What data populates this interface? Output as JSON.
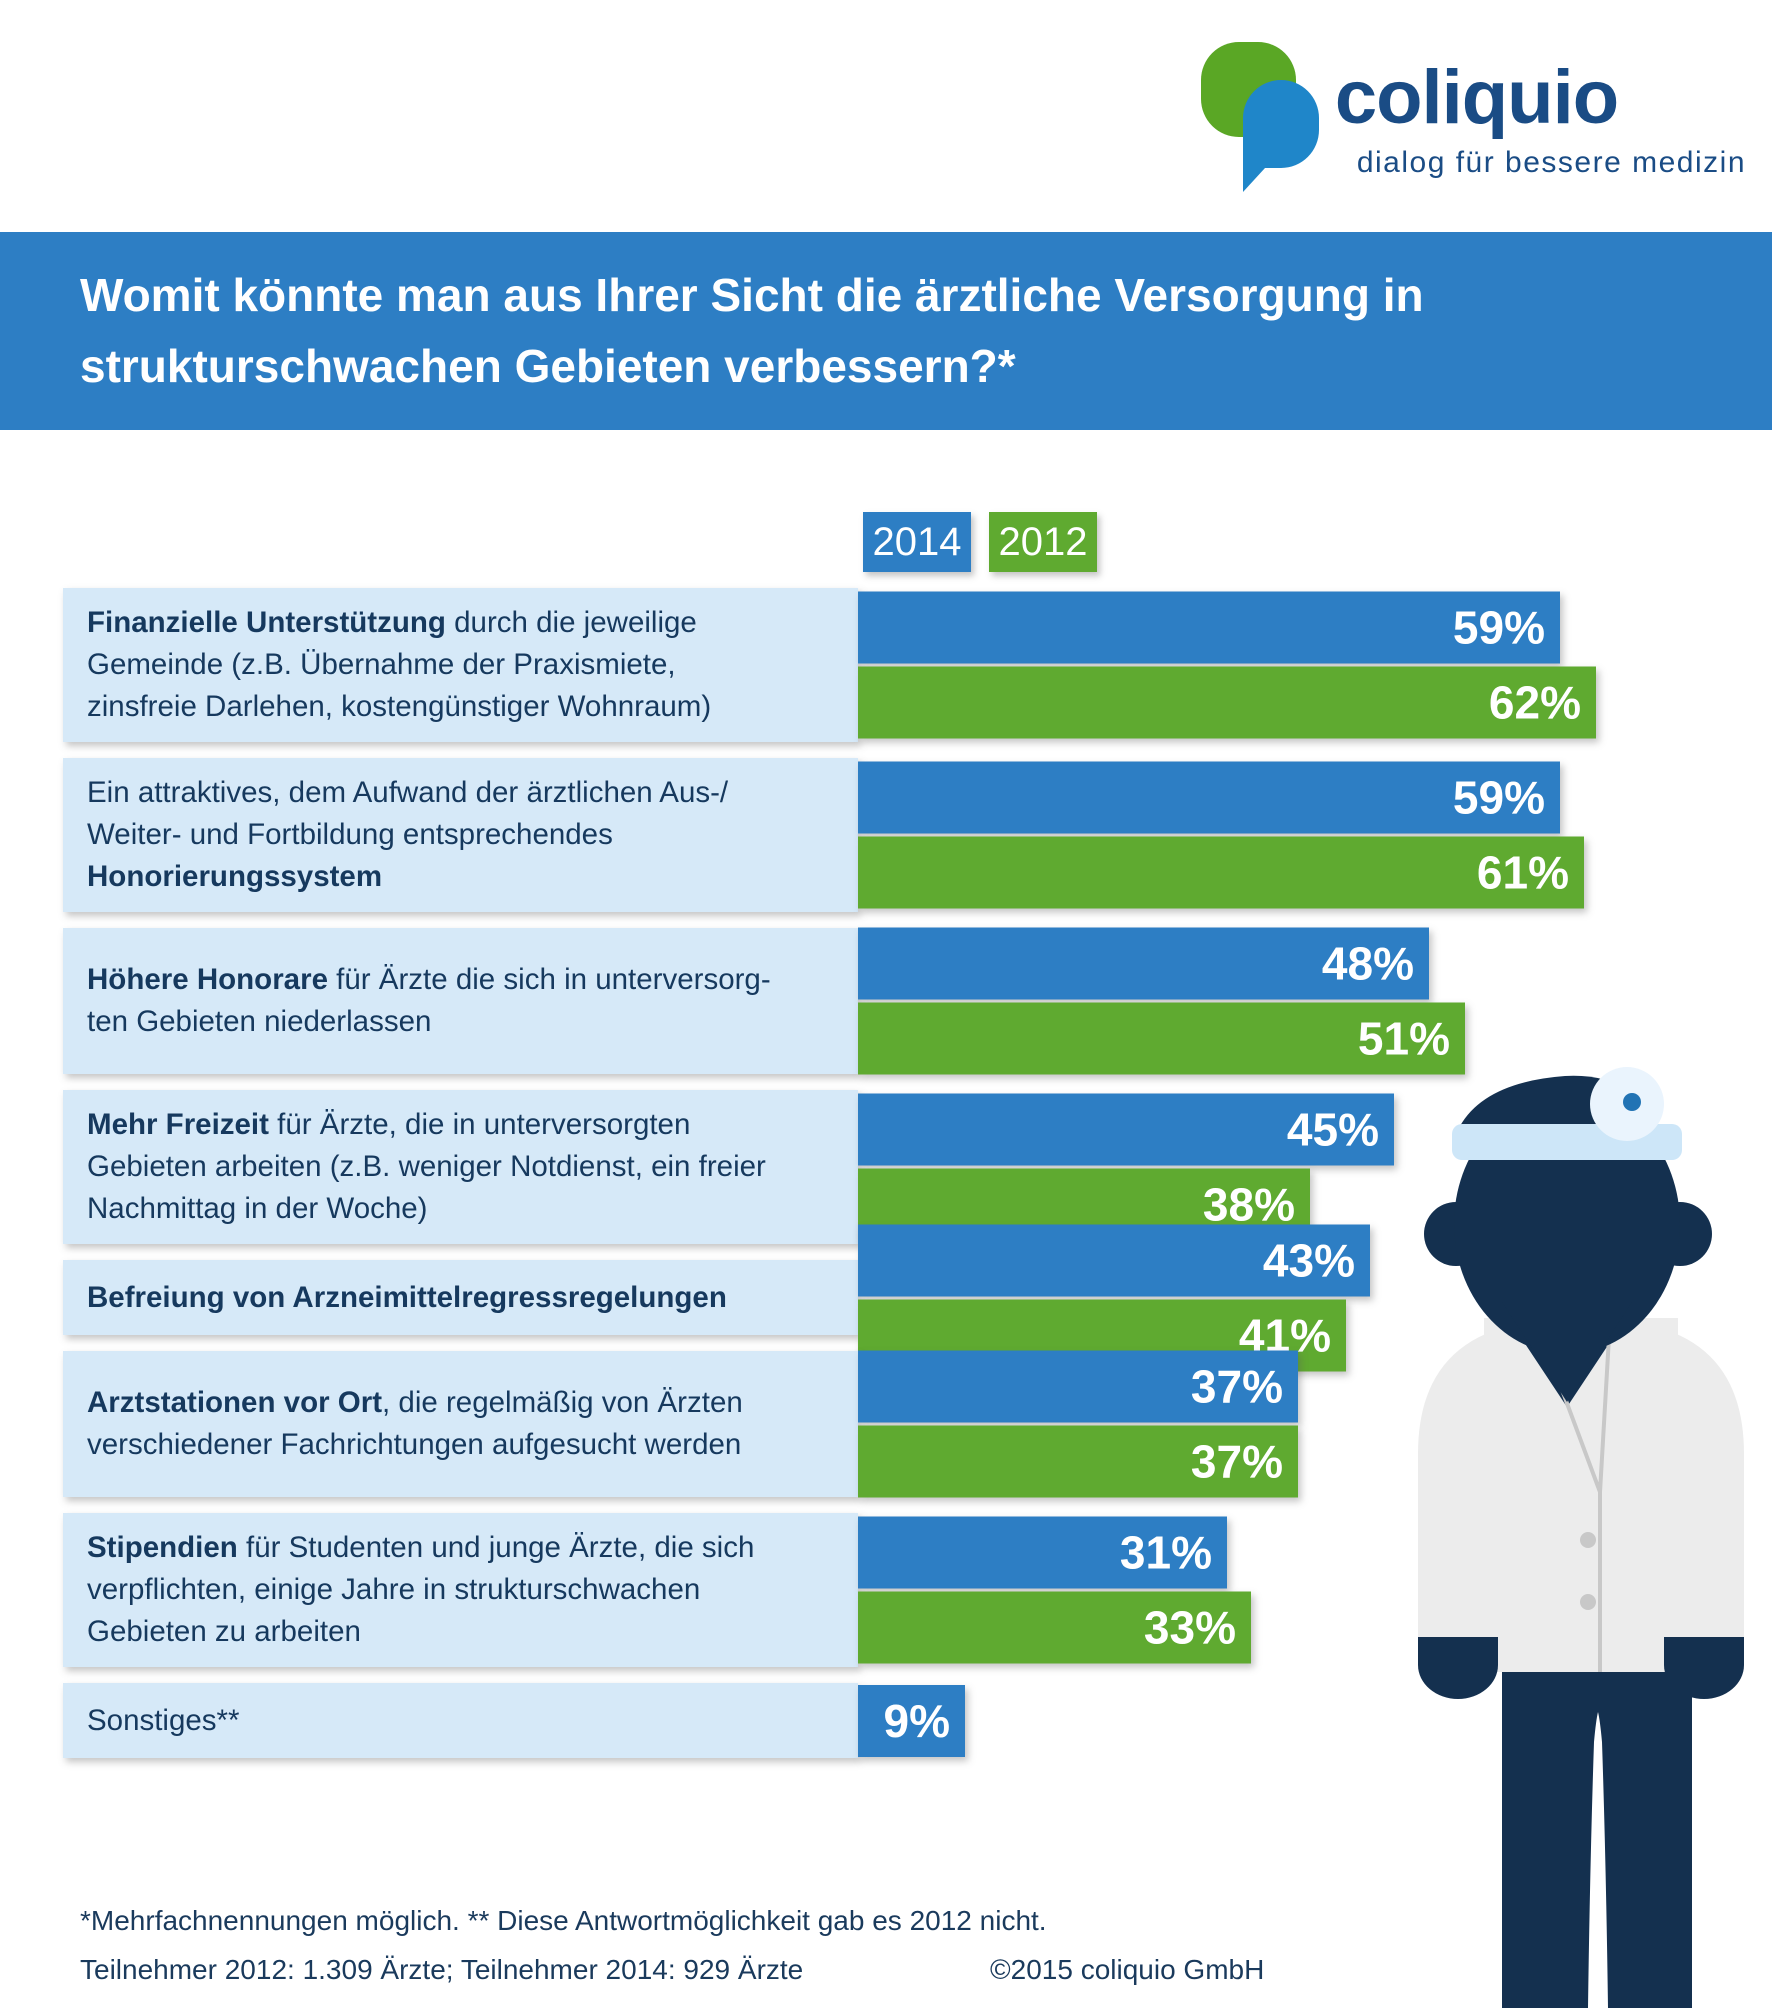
{
  "logo": {
    "brand": "coliquio",
    "tagline": "dialog für bessere medizin"
  },
  "header": {
    "title": "Womit könnte man aus Ihrer Sicht die ärztliche Versorgung in\nstrukturschwachen Gebieten verbessern?*"
  },
  "colors": {
    "bar_blue": "#2d7ec4",
    "bar_green": "#5faa30",
    "label_box_bg": "#d6e9f8",
    "dark_text": "#16395e",
    "brand_blue": "#1a4c85",
    "doctor_navy": "#14304f"
  },
  "chart_data": {
    "type": "bar",
    "orientation": "horizontal",
    "unit": "%",
    "value_range": [
      0,
      62
    ],
    "legend_position": "top",
    "legend": [
      {
        "label": "2014",
        "color": "#2d7ec4"
      },
      {
        "label": "2012",
        "color": "#5faa30"
      }
    ],
    "rows": [
      {
        "label_segments": [
          {
            "text": "Finanzielle Unterstützung",
            "bold": true
          },
          {
            "text": " durch die jeweilige\nGemeinde (z.B. Übernahme der Praxismiete,\nzinsfreie Darlehen, kostengünstiger Wohnraum)",
            "bold": false
          }
        ],
        "values": {
          "2014": 59,
          "2012": 62
        }
      },
      {
        "label_segments": [
          {
            "text": "Ein attraktives, dem Aufwand der ärztlichen Aus-/\nWeiter- und Fortbildung entsprechendes\n",
            "bold": false
          },
          {
            "text": "Honorierungssystem",
            "bold": true
          }
        ],
        "values": {
          "2014": 59,
          "2012": 61
        }
      },
      {
        "label_segments": [
          {
            "text": "Höhere Honorare",
            "bold": true
          },
          {
            "text": " für Ärzte die sich in unterversorg-\nten Gebieten niederlassen",
            "bold": false
          }
        ],
        "values": {
          "2014": 48,
          "2012": 51
        }
      },
      {
        "label_segments": [
          {
            "text": "Mehr Freizeit",
            "bold": true
          },
          {
            "text": " für Ärzte, die in unterversorgten\nGebieten arbeiten (z.B. weniger Notdienst, ein freier\nNachmittag in der Woche)",
            "bold": false
          }
        ],
        "values": {
          "2014": 45,
          "2012": 38
        }
      },
      {
        "label_segments": [
          {
            "text": "Befreiung von Arzneimittelregressregelungen",
            "bold": true
          }
        ],
        "values": {
          "2014": 43,
          "2012": 41
        }
      },
      {
        "label_segments": [
          {
            "text": "Arztstationen vor Ort",
            "bold": true
          },
          {
            "text": ", die regelmäßig von Ärzten\nverschiedener Fachrichtungen aufgesucht werden",
            "bold": false
          }
        ],
        "values": {
          "2014": 37,
          "2012": 37
        }
      },
      {
        "label_segments": [
          {
            "text": "Stipendien",
            "bold": true
          },
          {
            "text": " für Studenten und junge Ärzte, die sich\nverpflichten, einige Jahre in strukturschwachen\nGebieten zu arbeiten",
            "bold": false
          }
        ],
        "values": {
          "2014": 31,
          "2012": 33
        }
      },
      {
        "label_segments": [
          {
            "text": "Sonstiges**",
            "bold": false
          }
        ],
        "values": {
          "2014": 9,
          "2012": null
        }
      }
    ]
  },
  "footer": {
    "note": "*Mehrfachnennungen möglich.  ** Diese Antwortmöglichkeit gab es 2012 nicht.",
    "participants": "Teilnehmer 2012: 1.309 Ärzte; Teilnehmer 2014: 929 Ärzte",
    "copyright": "©2015 coliquio GmbH"
  }
}
